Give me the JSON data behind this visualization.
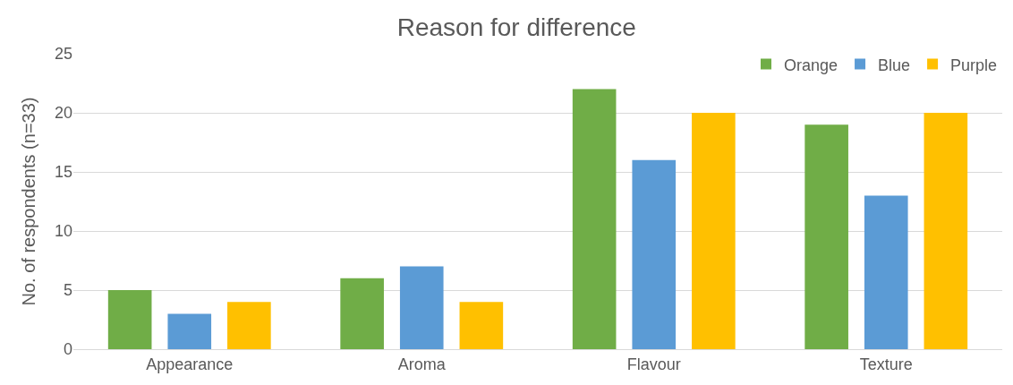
{
  "chart_data": {
    "type": "bar",
    "title": "Reason for difference",
    "ylabel": "No. of respondents (n=33)",
    "categories": [
      "Appearance",
      "Aroma",
      "Flavour",
      "Texture"
    ],
    "series": [
      {
        "name": "Orange",
        "color": "#70ad47",
        "values": [
          5,
          6,
          22,
          19
        ]
      },
      {
        "name": "Blue",
        "color": "#5b9bd5",
        "values": [
          3,
          7,
          16,
          13
        ]
      },
      {
        "name": "Purple",
        "color": "#ffc000",
        "values": [
          4,
          4,
          20,
          20
        ]
      }
    ],
    "ylim": [
      0,
      25
    ],
    "yticks": [
      0,
      5,
      10,
      15,
      20,
      25
    ],
    "grid": "y",
    "legend": "top right"
  }
}
